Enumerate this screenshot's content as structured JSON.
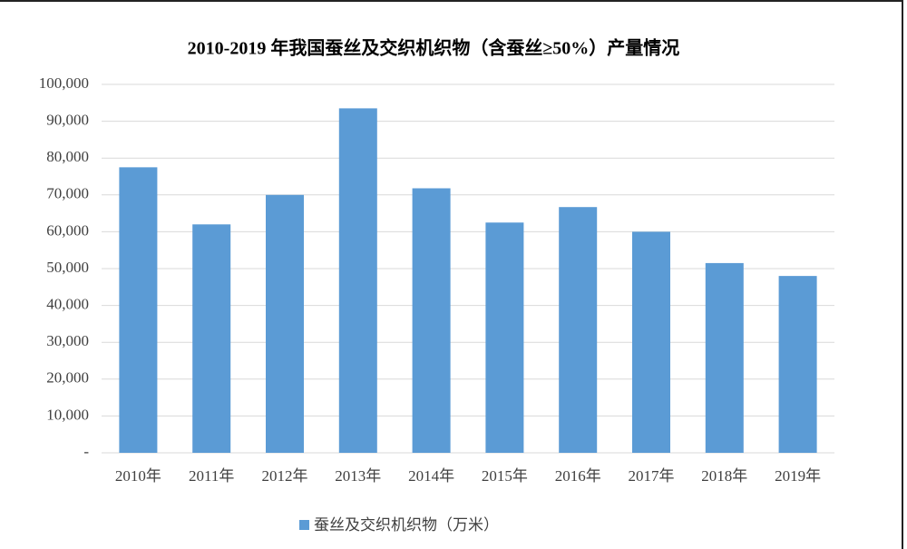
{
  "chart_data": {
    "type": "bar",
    "title": "2010-2019 年我国蚕丝及交织机织物（含蚕丝≥50%）产量情况",
    "categories": [
      "2010年",
      "2011年",
      "2012年",
      "2013年",
      "2014年",
      "2015年",
      "2016年",
      "2017年",
      "2018年",
      "2019年"
    ],
    "series": [
      {
        "name": "蚕丝及交织机织物（万米）",
        "color": "#5b9bd5",
        "values": [
          77500,
          62000,
          70000,
          93500,
          71800,
          62500,
          66700,
          60000,
          51500,
          48000
        ]
      }
    ],
    "ylim": [
      0,
      100000
    ],
    "yticks": [
      {
        "value": 0,
        "label": "-"
      },
      {
        "value": 10000,
        "label": "10,000"
      },
      {
        "value": 20000,
        "label": "20,000"
      },
      {
        "value": 30000,
        "label": "30,000"
      },
      {
        "value": 40000,
        "label": "40,000"
      },
      {
        "value": 50000,
        "label": "50,000"
      },
      {
        "value": 60000,
        "label": "60,000"
      },
      {
        "value": 70000,
        "label": "70,000"
      },
      {
        "value": 80000,
        "label": "80,000"
      },
      {
        "value": 90000,
        "label": "90,000"
      },
      {
        "value": 100000,
        "label": "100,000"
      }
    ],
    "grid": true,
    "legend": "bottom"
  }
}
